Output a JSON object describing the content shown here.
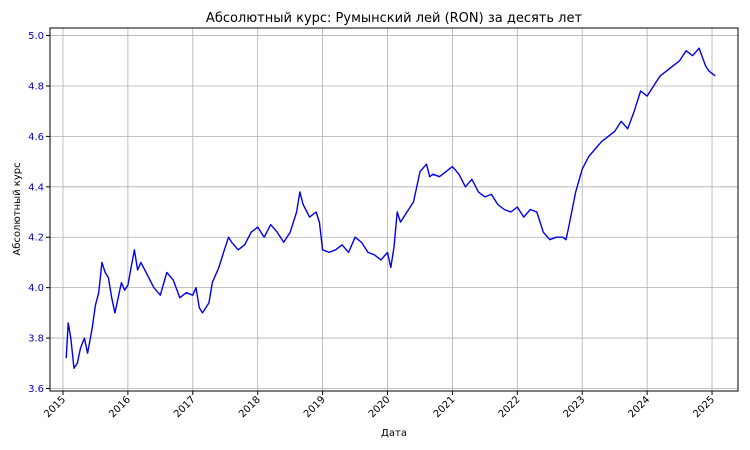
{
  "chart_data": {
    "type": "line",
    "title": "Абсолютный курс: Румынский лей (RON) за десять лет",
    "xlabel": "Дата",
    "ylabel": "Абсолютный курс",
    "xlim": [
      2014.8,
      2025.4
    ],
    "ylim": [
      3.59,
      5.03
    ],
    "x_ticks": [
      "2015",
      "2016",
      "2017",
      "2018",
      "2019",
      "2020",
      "2021",
      "2022",
      "2023",
      "2024",
      "2025"
    ],
    "y_ticks": [
      "3.6",
      "3.8",
      "4.0",
      "4.2",
      "4.4",
      "4.6",
      "4.8",
      "5.0"
    ],
    "grid": true,
    "colors": {
      "line": "#0000ee",
      "ylabel": "#0000cc",
      "grid": "#b0b0b0"
    },
    "series": [
      {
        "x": [
          2015.05,
          2015.08,
          2015.12,
          2015.17,
          2015.22,
          2015.27,
          2015.33,
          2015.38,
          2015.45,
          2015.5,
          2015.55,
          2015.6,
          2015.65,
          2015.7,
          2015.75,
          2015.8,
          2015.85,
          2015.9,
          2015.95,
          2016.0,
          2016.05,
          2016.1,
          2016.15,
          2016.2,
          2016.3,
          2016.4,
          2016.5,
          2016.6,
          2016.7,
          2016.8,
          2016.9,
          2017.0,
          2017.05,
          2017.1,
          2017.15,
          2017.25,
          2017.3,
          2017.4,
          2017.5,
          2017.55,
          2017.6,
          2017.7,
          2017.8,
          2017.9,
          2018.0,
          2018.1,
          2018.2,
          2018.3,
          2018.4,
          2018.5,
          2018.6,
          2018.65,
          2018.7,
          2018.8,
          2018.9,
          2018.95,
          2019.0,
          2019.1,
          2019.2,
          2019.3,
          2019.4,
          2019.5,
          2019.6,
          2019.7,
          2019.8,
          2019.9,
          2020.0,
          2020.05,
          2020.1,
          2020.15,
          2020.2,
          2020.3,
          2020.4,
          2020.5,
          2020.6,
          2020.65,
          2020.7,
          2020.8,
          2020.9,
          2021.0,
          2021.1,
          2021.2,
          2021.3,
          2021.4,
          2021.5,
          2021.6,
          2021.7,
          2021.8,
          2021.9,
          2022.0,
          2022.1,
          2022.2,
          2022.3,
          2022.4,
          2022.5,
          2022.6,
          2022.7,
          2022.75,
          2022.8,
          2022.9,
          2023.0,
          2023.1,
          2023.2,
          2023.3,
          2023.4,
          2023.5,
          2023.6,
          2023.7,
          2023.8,
          2023.9,
          2024.0,
          2024.1,
          2024.2,
          2024.3,
          2024.4,
          2024.5,
          2024.6,
          2024.7,
          2024.8,
          2024.9,
          2024.95,
          2025.0,
          2025.05
        ],
        "y": [
          3.72,
          3.86,
          3.8,
          3.68,
          3.7,
          3.76,
          3.8,
          3.74,
          3.84,
          3.93,
          3.98,
          4.1,
          4.06,
          4.04,
          3.96,
          3.9,
          3.96,
          4.02,
          3.99,
          4.01,
          4.08,
          4.15,
          4.07,
          4.1,
          4.05,
          4.0,
          3.97,
          4.06,
          4.03,
          3.96,
          3.98,
          3.97,
          4.0,
          3.92,
          3.9,
          3.94,
          4.02,
          4.08,
          4.16,
          4.2,
          4.18,
          4.15,
          4.17,
          4.22,
          4.24,
          4.2,
          4.25,
          4.22,
          4.18,
          4.22,
          4.3,
          4.38,
          4.33,
          4.28,
          4.3,
          4.26,
          4.15,
          4.14,
          4.15,
          4.17,
          4.14,
          4.2,
          4.18,
          4.14,
          4.13,
          4.11,
          4.14,
          4.08,
          4.16,
          4.3,
          4.26,
          4.3,
          4.34,
          4.46,
          4.49,
          4.44,
          4.45,
          4.44,
          4.46,
          4.48,
          4.45,
          4.4,
          4.43,
          4.38,
          4.36,
          4.37,
          4.33,
          4.31,
          4.3,
          4.32,
          4.28,
          4.31,
          4.3,
          4.22,
          4.19,
          4.2,
          4.2,
          4.19,
          4.25,
          4.38,
          4.47,
          4.52,
          4.55,
          4.58,
          4.6,
          4.62,
          4.66,
          4.63,
          4.7,
          4.78,
          4.76,
          4.8,
          4.84,
          4.86,
          4.88,
          4.9,
          4.94,
          4.92,
          4.95,
          4.88,
          4.86,
          4.85,
          4.84
        ]
      }
    ]
  }
}
